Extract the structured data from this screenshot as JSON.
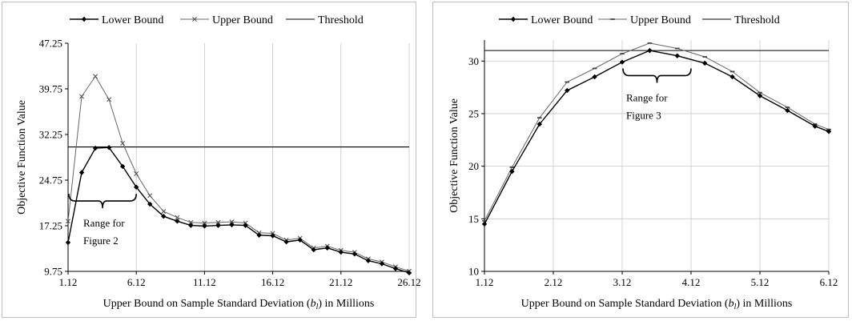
{
  "chart_data": [
    {
      "type": "line",
      "title": "",
      "xlabel_main": "Upper Bound on Sample Standard Deviation (",
      "xlabel_var": "b",
      "xlabel_sub": "l",
      "xlabel_tail": ") in Millions",
      "ylabel": "Objective Function Value",
      "xlim": [
        1.12,
        26.12
      ],
      "ylim": [
        9.75,
        47.25
      ],
      "xticks": [
        1.12,
        6.12,
        11.12,
        16.12,
        21.12,
        26.12
      ],
      "xtick_labels": [
        "1.12",
        "6.12",
        "11.12",
        "16.12",
        "21.12",
        "26.12"
      ],
      "yticks": [
        9.75,
        17.25,
        24.75,
        32.25,
        39.75,
        47.25
      ],
      "ytick_labels": [
        "9.75",
        "17.25",
        "24.75",
        "32.25",
        "39.75",
        "47.25"
      ],
      "grid": "vertical",
      "legend": "top",
      "threshold": 30.2,
      "annotation": {
        "lines": [
          "Range for",
          "Figure 2"
        ],
        "x1": 1.12,
        "x2": 6.12,
        "y": 22.5
      },
      "series": [
        {
          "name": "Lower Bound",
          "marker": "diamond",
          "x": [
            1.12,
            2.12,
            3.12,
            4.12,
            5.12,
            6.12,
            7.12,
            8.12,
            9.12,
            10.12,
            11.12,
            12.12,
            13.12,
            14.12,
            15.12,
            16.12,
            17.12,
            18.12,
            19.12,
            20.12,
            21.12,
            22.12,
            23.12,
            24.12,
            25.12,
            26.12
          ],
          "values": [
            14.5,
            26.0,
            30.0,
            30.1,
            27.0,
            23.6,
            20.8,
            18.8,
            18.0,
            17.3,
            17.2,
            17.3,
            17.4,
            17.3,
            15.7,
            15.6,
            14.6,
            14.9,
            13.3,
            13.6,
            12.9,
            12.6,
            11.5,
            11.0,
            10.2,
            9.5
          ]
        },
        {
          "name": "Upper Bound",
          "marker": "x",
          "x": [
            1.12,
            2.12,
            3.12,
            4.12,
            5.12,
            6.12,
            7.12,
            8.12,
            9.12,
            10.12,
            11.12,
            12.12,
            13.12,
            14.12,
            15.12,
            16.12,
            17.12,
            18.12,
            19.12,
            20.12,
            21.12,
            22.12,
            23.12,
            24.12,
            25.12,
            26.12
          ],
          "values": [
            18.0,
            38.5,
            41.8,
            38.0,
            30.8,
            25.8,
            22.2,
            19.6,
            18.6,
            17.8,
            17.7,
            17.8,
            17.9,
            17.7,
            16.1,
            16.0,
            14.9,
            15.2,
            13.6,
            13.9,
            13.2,
            12.9,
            11.8,
            11.3,
            10.5,
            9.8
          ]
        },
        {
          "name": "Threshold",
          "marker": "none",
          "x": [],
          "values": []
        }
      ]
    },
    {
      "type": "line",
      "title": "",
      "xlabel_main": "Upper Bound on Sample Standard Deviation (",
      "xlabel_var": "b",
      "xlabel_sub": "l",
      "xlabel_tail": ") in Millions",
      "ylabel": "Objective Function Value",
      "xlim": [
        1.12,
        6.12
      ],
      "ylim": [
        10,
        32
      ],
      "xticks": [
        1.12,
        2.12,
        3.12,
        4.12,
        5.12,
        6.12
      ],
      "xtick_labels": [
        "1.12",
        "2.12",
        "3.12",
        "4.12",
        "5.12",
        "6.12"
      ],
      "yticks": [
        10,
        15,
        20,
        25,
        30
      ],
      "ytick_labels": [
        "10",
        "15",
        "20",
        "25",
        "30"
      ],
      "grid": "both",
      "legend": "top",
      "threshold": 31.0,
      "annotation": {
        "lines": [
          "Range for",
          "Figure 3"
        ],
        "x1": 3.12,
        "x2": 4.12,
        "y": 29.3
      },
      "series": [
        {
          "name": "Lower Bound",
          "marker": "diamond",
          "x": [
            1.12,
            1.52,
            1.92,
            2.32,
            2.72,
            3.12,
            3.52,
            3.92,
            4.32,
            4.72,
            5.12,
            5.52,
            5.92,
            6.12
          ],
          "values": [
            14.5,
            19.5,
            24.0,
            27.2,
            28.5,
            29.9,
            31.0,
            30.5,
            29.8,
            28.5,
            26.7,
            25.3,
            23.8,
            23.3
          ]
        },
        {
          "name": "Upper Bound",
          "marker": "dash",
          "x": [
            1.12,
            1.52,
            1.92,
            2.32,
            2.72,
            3.12,
            3.52,
            3.92,
            4.32,
            4.72,
            5.12,
            5.52,
            5.92,
            6.12
          ],
          "values": [
            14.8,
            19.9,
            24.6,
            28.0,
            29.3,
            30.7,
            31.7,
            31.2,
            30.4,
            29.0,
            27.0,
            25.6,
            24.0,
            23.5
          ]
        },
        {
          "name": "Threshold",
          "marker": "none",
          "x": [],
          "values": []
        }
      ]
    }
  ]
}
